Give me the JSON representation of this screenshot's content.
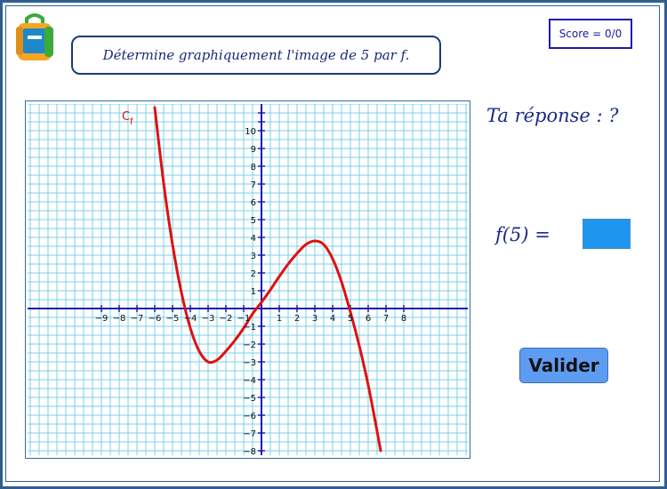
{
  "prompt": {
    "text": "Détermine graphiquement l'image de 5 par f."
  },
  "score": {
    "text": "Score = 0/0"
  },
  "answer_panel": {
    "heading": "Ta réponse : ?",
    "expression": "f(5) =",
    "input_value": "",
    "input_color": "#1e96f0"
  },
  "buttons": {
    "validate_label": "Valider"
  },
  "colors": {
    "grid": "#78d0e8",
    "axis": "#1a1ab0",
    "curve": "#e01010",
    "text": "#1a2a8a"
  },
  "chart_data": {
    "type": "line",
    "title": "",
    "xlabel": "",
    "ylabel": "",
    "xlim": [
      -9.5,
      8.5
    ],
    "ylim": [
      -8.2,
      11
    ],
    "x_ticks": [
      -9,
      -8,
      -7,
      -6,
      -5,
      -4,
      -3,
      -2,
      -1,
      1,
      2,
      3,
      4,
      5,
      6,
      7,
      8
    ],
    "y_ticks": [
      -8,
      -7,
      -6,
      -5,
      -4,
      -3,
      -2,
      -1,
      1,
      2,
      3,
      4,
      5,
      6,
      7,
      8,
      9,
      10
    ],
    "grid": true,
    "series": [
      {
        "name": "Cf",
        "label": {
          "main": "C",
          "sub": "f"
        },
        "x": [
          -6,
          -5.5,
          -5,
          -4.5,
          -4,
          -3.5,
          -3,
          -2.5,
          -2,
          -1.5,
          -1,
          -0.5,
          0,
          0.5,
          1,
          1.5,
          2,
          2.5,
          3,
          3.5,
          4,
          4.5,
          5,
          5.5,
          6,
          6.5,
          6.7
        ],
        "y": [
          11.3,
          7.05,
          3.6,
          0.9,
          -1.1,
          -2.4,
          -3.0,
          -2.9,
          -2.4,
          -1.8,
          -1.1,
          -0.3,
          0.35,
          1.05,
          1.8,
          2.5,
          3.1,
          3.6,
          3.8,
          3.6,
          2.8,
          1.5,
          -0.2,
          -2.1,
          -4.3,
          -6.9,
          -8.0
        ]
      }
    ]
  }
}
